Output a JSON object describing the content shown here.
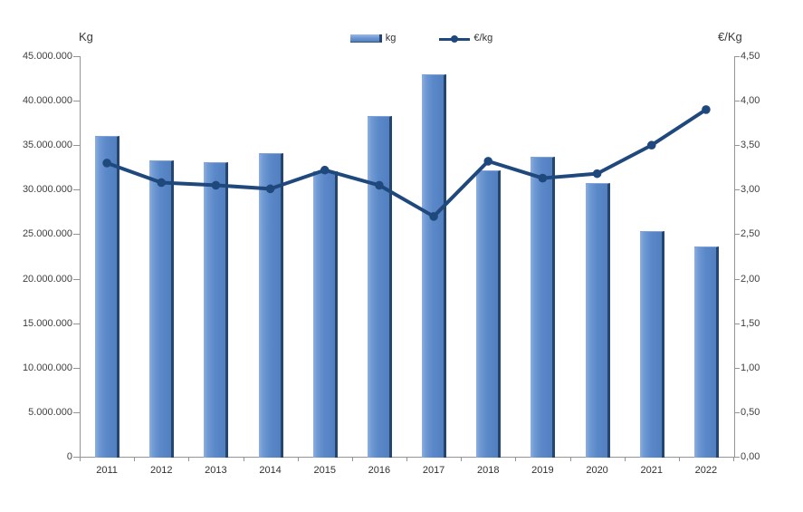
{
  "chart_data": {
    "type": "combo",
    "categories": [
      "2011",
      "2012",
      "2013",
      "2014",
      "2015",
      "2016",
      "2017",
      "2018",
      "2019",
      "2020",
      "2021",
      "2022"
    ],
    "series": [
      {
        "name": "kg",
        "type": "bar",
        "axis": "left",
        "values": [
          36000000,
          33300000,
          33100000,
          34100000,
          32100000,
          38300000,
          43000000,
          32200000,
          33700000,
          30700000,
          25300000,
          23600000
        ]
      },
      {
        "name": "€/kg",
        "type": "line",
        "axis": "right",
        "values": [
          3.3,
          3.08,
          3.05,
          3.01,
          3.22,
          3.05,
          2.7,
          3.32,
          3.13,
          3.18,
          3.5,
          3.9
        ]
      }
    ],
    "left_axis": {
      "title": "Kg",
      "min": 0,
      "max": 45000000,
      "step": 5000000,
      "tick_labels": [
        "45.000.000",
        "40.000.000",
        "35.000.000",
        "30.000.000",
        "25.000.000",
        "20.000.000",
        "15.000.000",
        "10.000.000",
        "5.000.000",
        "0"
      ]
    },
    "right_axis": {
      "title": "€/Kg",
      "min": 0,
      "max": 4.5,
      "step": 0.5,
      "tick_labels": [
        "4,50",
        "4,00",
        "3,50",
        "3,00",
        "2,50",
        "2,00",
        "1,50",
        "1,00",
        "0,50",
        "0,00"
      ]
    },
    "grid": false,
    "legend_position": "top-center",
    "colors": {
      "bar_fill": "#5B88C9",
      "bar_edge": "#24466E",
      "line": "#1F497D",
      "axis_line": "#949494",
      "tick_text": "#3F3F3F"
    }
  }
}
